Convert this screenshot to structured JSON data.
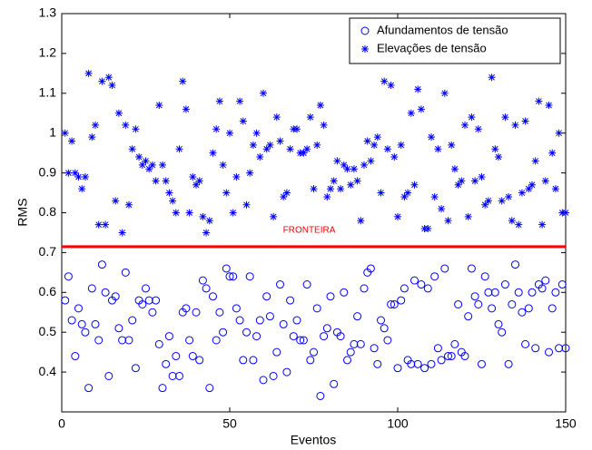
{
  "chart_data": {
    "type": "scatter",
    "xlabel": "Eventos",
    "ylabel": "RMS",
    "xlim": [
      0,
      150
    ],
    "ylim": [
      0.3,
      1.3
    ],
    "xticks": [
      0,
      50,
      100,
      150
    ],
    "yticks": [
      0.4,
      0.5,
      0.6,
      0.7,
      0.8,
      0.9,
      1,
      1.1,
      1.2,
      1.3
    ],
    "legend": "upper right",
    "threshold": {
      "value": 0.715,
      "color": "#ff0000",
      "label": "FRONTEIRA"
    },
    "x": [
      1,
      2,
      3,
      4,
      5,
      6,
      7,
      8,
      9,
      10,
      11,
      12,
      13,
      14,
      15,
      16,
      17,
      18,
      19,
      20,
      21,
      22,
      23,
      24,
      25,
      26,
      27,
      28,
      29,
      30,
      31,
      32,
      33,
      34,
      35,
      36,
      37,
      38,
      39,
      40,
      41,
      42,
      43,
      44,
      45,
      46,
      47,
      48,
      49,
      50,
      51,
      52,
      53,
      54,
      55,
      56,
      57,
      58,
      59,
      60,
      61,
      62,
      63,
      64,
      65,
      66,
      67,
      68,
      69,
      70,
      71,
      72,
      73,
      74,
      75,
      76,
      77,
      78,
      79,
      80,
      81,
      82,
      83,
      84,
      85,
      86,
      87,
      88,
      89,
      90,
      91,
      92,
      93,
      94,
      95,
      96,
      97,
      98,
      99,
      100,
      101,
      102,
      103,
      104,
      105,
      106,
      107,
      108,
      109,
      110,
      111,
      112,
      113,
      114,
      115,
      116,
      117,
      118,
      119,
      120,
      121,
      122,
      123,
      124,
      125,
      126,
      127,
      128,
      129,
      130,
      131,
      132,
      133,
      134,
      135,
      136,
      137,
      138,
      139,
      140,
      141,
      142,
      143,
      144,
      145,
      146,
      147,
      148,
      149,
      150
    ],
    "series": [
      {
        "name": "Afundamentos de tensão",
        "marker": "circle",
        "color": "#0000ff",
        "values": [
          0.58,
          0.64,
          0.53,
          0.44,
          0.56,
          0.52,
          0.5,
          0.36,
          0.61,
          0.52,
          0.48,
          0.67,
          0.6,
          0.39,
          0.58,
          0.59,
          0.51,
          0.48,
          0.65,
          0.48,
          0.53,
          0.41,
          0.58,
          0.57,
          0.61,
          0.58,
          0.55,
          0.58,
          0.47,
          0.36,
          0.42,
          0.49,
          0.39,
          0.44,
          0.39,
          0.55,
          0.56,
          0.48,
          0.44,
          0.55,
          0.43,
          0.63,
          0.61,
          0.36,
          0.59,
          0.48,
          0.55,
          0.5,
          0.66,
          0.64,
          0.64,
          0.56,
          0.53,
          0.43,
          0.5,
          0.64,
          0.43,
          0.49,
          0.53,
          0.38,
          0.59,
          0.54,
          0.39,
          0.45,
          0.62,
          0.52,
          0.4,
          0.58,
          0.49,
          0.53,
          0.48,
          0.48,
          0.62,
          0.43,
          0.45,
          0.56,
          0.34,
          0.49,
          0.51,
          0.59,
          0.37,
          0.5,
          0.49,
          0.6,
          0.43,
          0.45,
          0.47,
          0.54,
          0.47,
          0.61,
          0.65,
          0.66,
          0.46,
          0.42,
          0.53,
          0.51,
          0.48,
          0.57,
          0.57,
          0.41,
          0.58,
          0.61,
          0.43,
          0.42,
          0.63,
          0.42,
          0.62,
          0.41,
          0.61,
          0.42,
          0.64,
          0.46,
          0.43,
          0.66,
          0.44,
          0.44,
          0.47,
          0.57,
          0.45,
          0.44,
          0.54,
          0.66,
          0.59,
          0.57,
          0.42,
          0.64,
          0.6,
          0.56,
          0.6,
          0.52,
          0.5,
          0.62,
          0.42,
          0.57,
          0.67,
          0.6,
          0.55,
          0.47,
          0.56,
          0.6,
          0.46,
          0.62,
          0.61,
          0.63,
          0.45,
          0.56,
          0.6,
          0.46,
          0.62,
          0.46
        ]
      },
      {
        "name": "Elevações de tensão",
        "marker": "star",
        "color": "#0000ff",
        "values": [
          1.0,
          0.9,
          0.98,
          0.9,
          0.89,
          0.86,
          0.89,
          1.15,
          0.99,
          1.02,
          0.77,
          1.13,
          0.77,
          1.14,
          1.12,
          0.83,
          1.05,
          0.75,
          1.02,
          0.82,
          0.96,
          1.01,
          0.94,
          0.92,
          0.93,
          0.91,
          0.92,
          0.88,
          1.07,
          0.92,
          0.88,
          0.85,
          0.83,
          0.8,
          0.96,
          1.13,
          1.06,
          0.8,
          0.89,
          0.87,
          0.88,
          0.79,
          0.75,
          0.78,
          0.95,
          1.01,
          1.08,
          0.92,
          0.85,
          1.0,
          0.8,
          0.89,
          1.08,
          1.03,
          0.82,
          0.9,
          0.97,
          1.0,
          0.94,
          1.1,
          0.96,
          0.97,
          0.79,
          1.04,
          0.98,
          0.84,
          0.85,
          0.96,
          1.01,
          1.01,
          0.95,
          0.95,
          0.96,
          1.04,
          0.86,
          0.97,
          1.07,
          1.02,
          0.84,
          0.86,
          0.88,
          0.93,
          0.86,
          0.92,
          0.91,
          0.87,
          0.91,
          0.88,
          0.78,
          0.92,
          0.98,
          0.93,
          0.97,
          0.99,
          0.85,
          1.13,
          0.96,
          1.12,
          0.94,
          0.79,
          0.97,
          0.84,
          0.85,
          1.05,
          0.87,
          1.11,
          1.06,
          0.76,
          0.76,
          0.99,
          0.84,
          0.96,
          0.81,
          1.1,
          0.78,
          0.97,
          0.91,
          0.87,
          0.88,
          1.02,
          0.79,
          1.04,
          0.88,
          1.01,
          0.89,
          0.82,
          0.83,
          1.14,
          0.96,
          0.94,
          0.83,
          1.04,
          0.84,
          0.78,
          1.02,
          0.77,
          0.85,
          1.03,
          0.86,
          0.87,
          0.93,
          1.08,
          0.77,
          0.88,
          1.07,
          0.95,
          0.86,
          1.0,
          0.8,
          0.8
        ]
      }
    ]
  }
}
